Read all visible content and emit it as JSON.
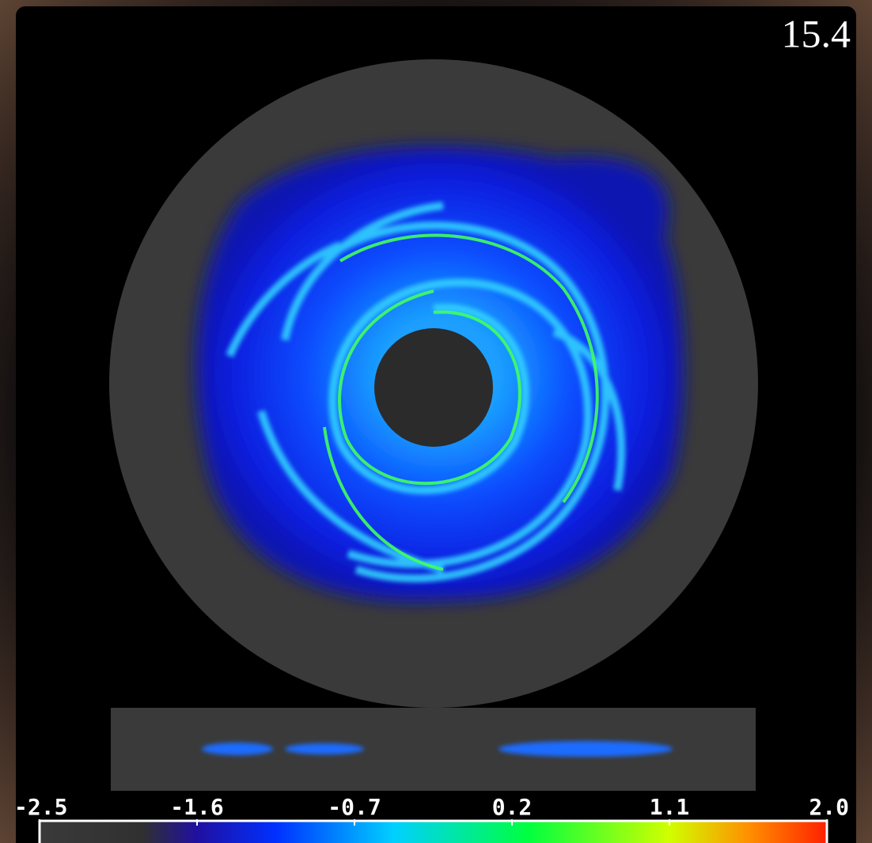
{
  "timestamp": "15.4",
  "colorbar": {
    "ticks": [
      -2.5,
      -1.6,
      -0.7,
      0.2,
      1.1,
      {
        "value": 2,
        "label": "2.0"
      }
    ]
  }
}
